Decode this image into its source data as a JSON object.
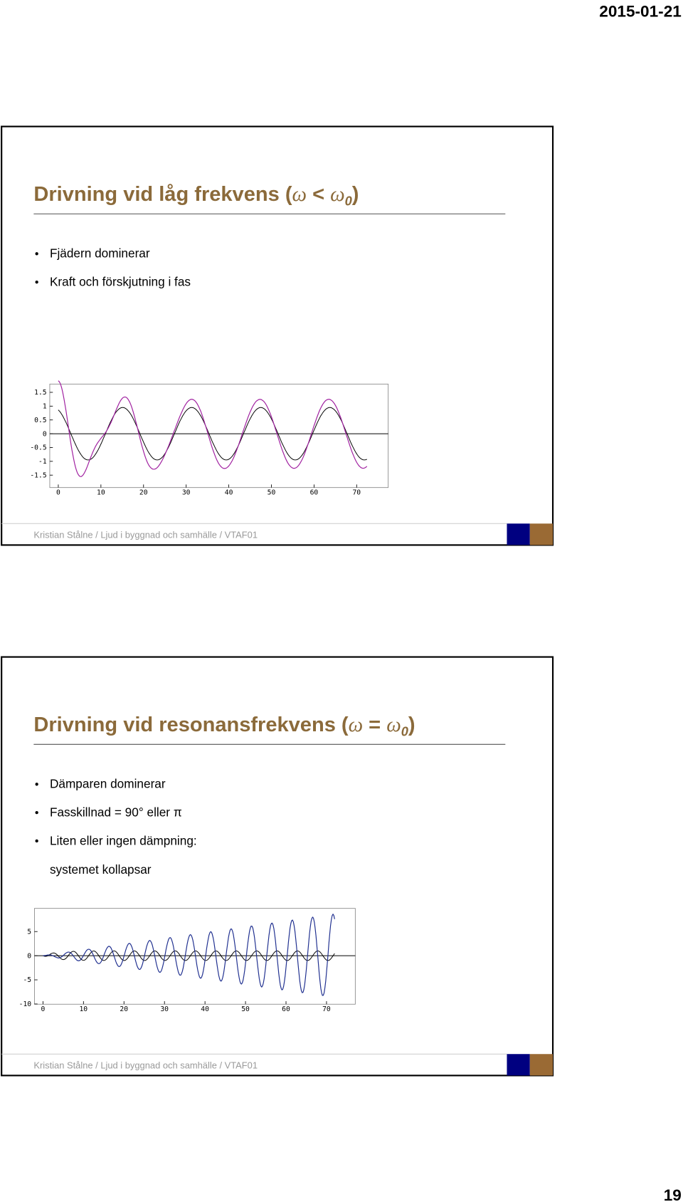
{
  "header": {
    "date": "2015-01-21"
  },
  "slides": [
    {
      "title": [
        "Drivning vid låg frekvens (",
        "ω",
        " < ",
        "ω",
        "0",
        ")"
      ],
      "bullets": [
        "Fjädern dominerar",
        "Kraft och förskjutning i fas"
      ],
      "plot": {
        "xlim": [
          -2,
          77.4
        ],
        "ylim": [
          -1.95,
          1.8
        ],
        "xticks": [
          0,
          10,
          20,
          30,
          40,
          50,
          60,
          70
        ],
        "yticks": [
          1.5,
          1,
          0.5,
          0,
          -0.5,
          -1,
          -1.5
        ]
      },
      "footer": "Kristian Stålne / Ljud i byggnad och samhälle / VTAF01"
    },
    {
      "title": [
        "Drivning vid resonansfrekvens (",
        "ω",
        " = ",
        "ω",
        "0",
        ")"
      ],
      "bullets": [
        "Dämparen dominerar",
        "Fasskillnad = 90° eller π",
        "Liten eller ingen dämpning:"
      ],
      "continuation": "systemet kollapsar",
      "plot": {
        "xlim": [
          -2.1,
          77.1
        ],
        "ylim": [
          -10.05,
          9.8
        ],
        "xticks": [
          0,
          10,
          20,
          30,
          40,
          50,
          60,
          70
        ],
        "yticks": [
          5,
          0,
          -5,
          -10
        ]
      },
      "footer": "Kristian Stålne / Ljud i byggnad och samhälle / VTAF01"
    }
  ],
  "page_number": "19"
}
